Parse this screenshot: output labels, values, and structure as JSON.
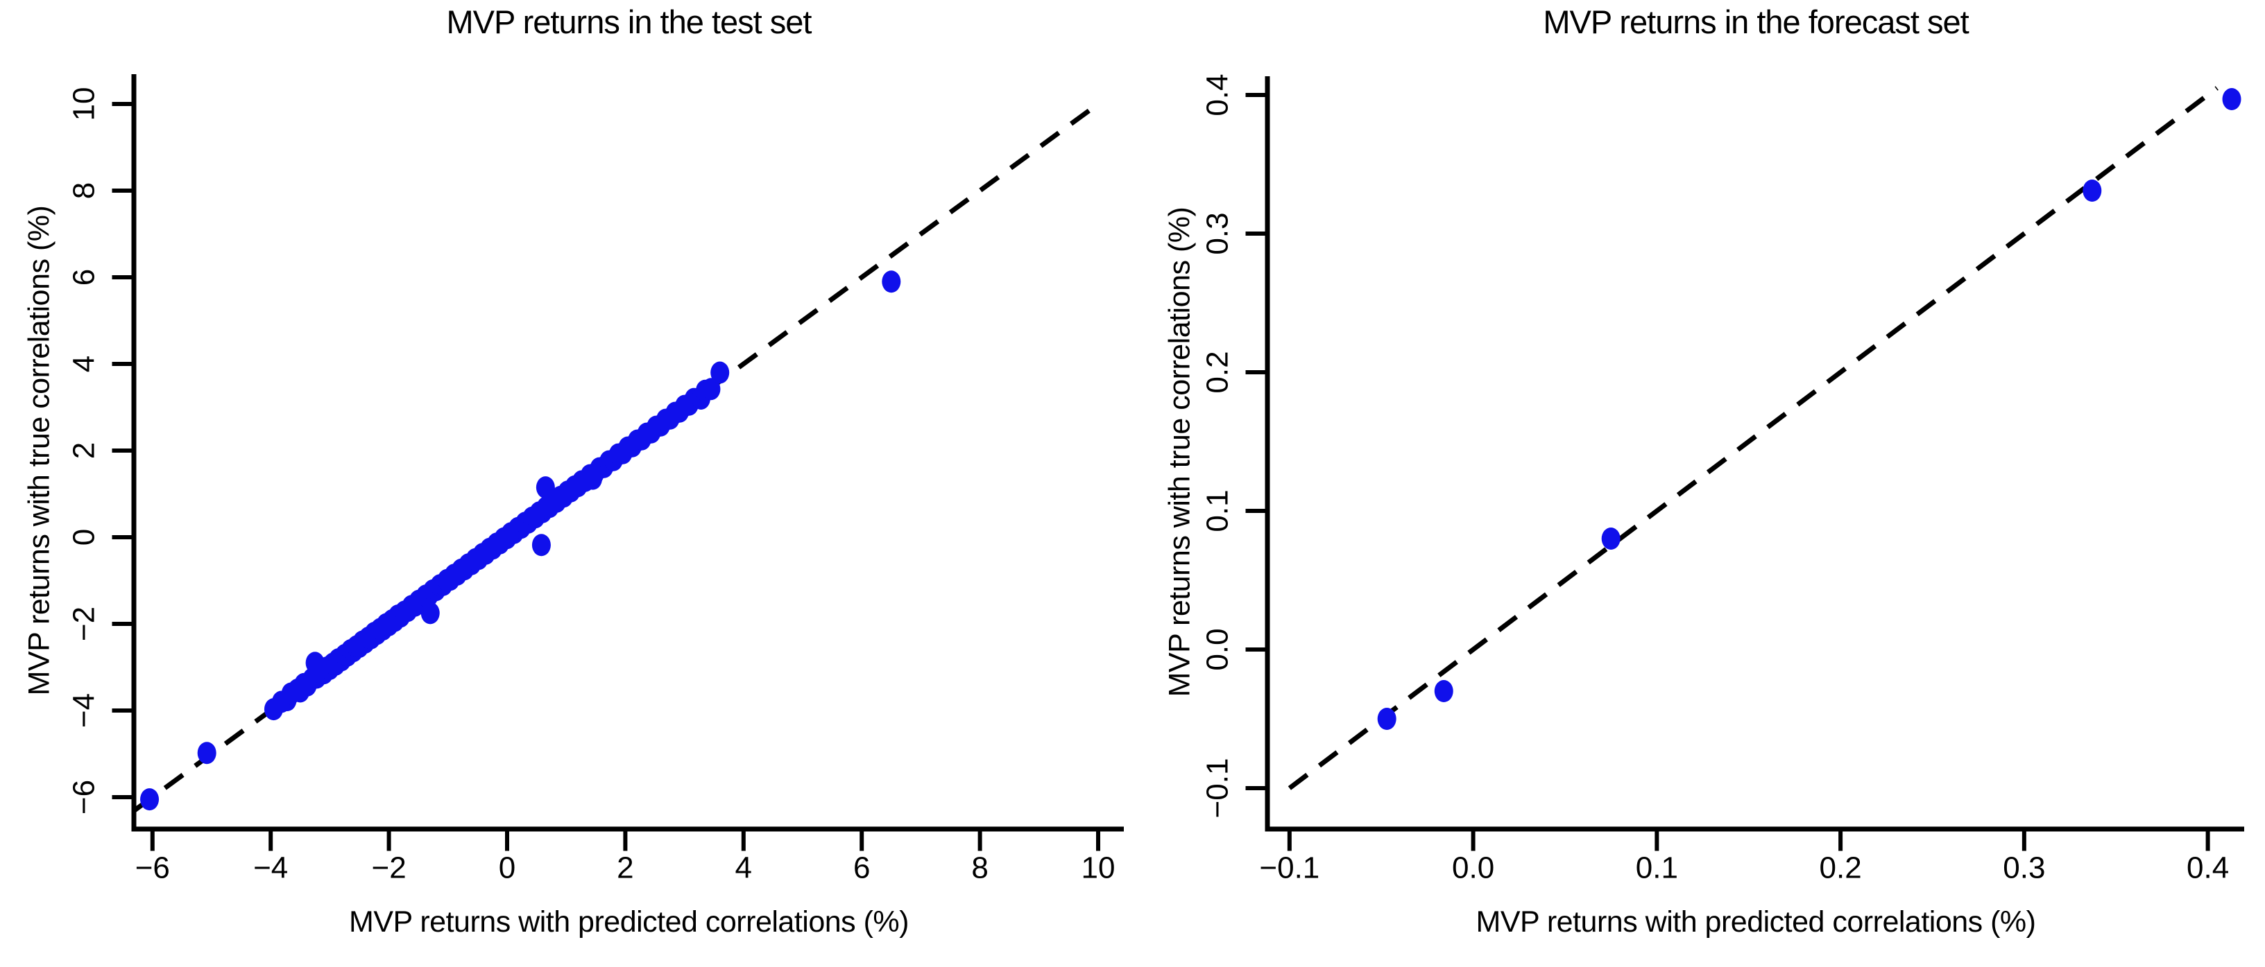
{
  "figure": {
    "background": "#ffffff",
    "axis_color": "#000000",
    "marker_color": "#1010EB"
  },
  "chart_data": [
    {
      "type": "scatter",
      "title": "MVP returns in the test set",
      "xlabel": "MVP returns with predicted correlations (%)",
      "ylabel": "MVP returns with true correlations (%)",
      "xlim": [
        -6.45,
        10.45
      ],
      "ylim": [
        -6.75,
        10.7
      ],
      "grid": false,
      "legend": null,
      "x_ticks": {
        "values": [
          -6,
          -4,
          -2,
          0,
          2,
          4,
          6,
          8,
          10
        ],
        "labels": [
          "−6",
          "−4",
          "−2",
          "0",
          "2",
          "4",
          "6",
          "8",
          "10"
        ]
      },
      "y_ticks": {
        "values": [
          -6,
          -4,
          -2,
          0,
          2,
          4,
          6,
          8,
          10
        ],
        "labels": [
          "−6",
          "−4",
          "−2",
          "0",
          "2",
          "4",
          "6",
          "8",
          "10"
        ]
      },
      "identity_line": {
        "style": "dashed",
        "from": -6.3,
        "to": 9.9
      },
      "points": [
        [
          -6.05,
          -6.05
        ],
        [
          -5.08,
          -4.98
        ],
        [
          -3.95,
          -3.97
        ],
        [
          -3.82,
          -3.8
        ],
        [
          -3.72,
          -3.76
        ],
        [
          -3.66,
          -3.61
        ],
        [
          -3.55,
          -3.52
        ],
        [
          -3.5,
          -3.56
        ],
        [
          -3.44,
          -3.39
        ],
        [
          -3.38,
          -3.42
        ],
        [
          -3.3,
          -3.27
        ],
        [
          -3.25,
          -2.9
        ],
        [
          -3.22,
          -3.24
        ],
        [
          -3.16,
          -3.12
        ],
        [
          -3.1,
          -3.14
        ],
        [
          -3.05,
          -3.01
        ],
        [
          -3.0,
          -3.04
        ],
        [
          -2.95,
          -2.92
        ],
        [
          -2.9,
          -2.94
        ],
        [
          -2.86,
          -2.82
        ],
        [
          -2.8,
          -2.84
        ],
        [
          -2.75,
          -2.72
        ],
        [
          -2.7,
          -2.73
        ],
        [
          -2.65,
          -2.61
        ],
        [
          -2.6,
          -2.63
        ],
        [
          -2.55,
          -2.52
        ],
        [
          -2.5,
          -2.53
        ],
        [
          -2.45,
          -2.41
        ],
        [
          -2.4,
          -2.43
        ],
        [
          -2.35,
          -2.32
        ],
        [
          -2.3,
          -2.33
        ],
        [
          -2.25,
          -2.21
        ],
        [
          -2.2,
          -2.23
        ],
        [
          -2.15,
          -2.12
        ],
        [
          -2.1,
          -2.13
        ],
        [
          -2.05,
          -2.01
        ],
        [
          -2.0,
          -2.03
        ],
        [
          -1.95,
          -1.92
        ],
        [
          -1.9,
          -1.93
        ],
        [
          -1.85,
          -1.81
        ],
        [
          -1.8,
          -1.83
        ],
        [
          -1.74,
          -1.72
        ],
        [
          -1.68,
          -1.7
        ],
        [
          -1.62,
          -1.59
        ],
        [
          -1.56,
          -1.58
        ],
        [
          -1.5,
          -1.47
        ],
        [
          -1.44,
          -1.46
        ],
        [
          -1.38,
          -1.35
        ],
        [
          -1.32,
          -1.34
        ],
        [
          -1.3,
          -1.75
        ],
        [
          -1.26,
          -1.23
        ],
        [
          -1.2,
          -1.22
        ],
        [
          -1.14,
          -1.11
        ],
        [
          -1.08,
          -1.1
        ],
        [
          -1.02,
          -0.99
        ],
        [
          -0.96,
          -0.98
        ],
        [
          -0.9,
          -0.87
        ],
        [
          -0.84,
          -0.86
        ],
        [
          -0.78,
          -0.75
        ],
        [
          -0.72,
          -0.74
        ],
        [
          -0.66,
          -0.63
        ],
        [
          -0.6,
          -0.62
        ],
        [
          -0.54,
          -0.51
        ],
        [
          -0.48,
          -0.5
        ],
        [
          -0.42,
          -0.39
        ],
        [
          -0.36,
          -0.38
        ],
        [
          -0.3,
          -0.27
        ],
        [
          -0.24,
          -0.26
        ],
        [
          -0.18,
          -0.15
        ],
        [
          -0.12,
          -0.14
        ],
        [
          -0.06,
          -0.03
        ],
        [
          0.0,
          -0.02
        ],
        [
          0.06,
          0.09
        ],
        [
          0.12,
          0.1
        ],
        [
          0.18,
          0.21
        ],
        [
          0.24,
          0.22
        ],
        [
          0.3,
          0.33
        ],
        [
          0.36,
          0.34
        ],
        [
          0.42,
          0.45
        ],
        [
          0.48,
          0.46
        ],
        [
          0.54,
          0.57
        ],
        [
          0.58,
          -0.18
        ],
        [
          0.6,
          0.58
        ],
        [
          0.65,
          1.15
        ],
        [
          0.66,
          0.69
        ],
        [
          0.72,
          0.7
        ],
        [
          0.78,
          0.81
        ],
        [
          0.84,
          0.82
        ],
        [
          0.9,
          0.93
        ],
        [
          0.96,
          0.94
        ],
        [
          1.02,
          1.05
        ],
        [
          1.08,
          1.06
        ],
        [
          1.14,
          1.17
        ],
        [
          1.2,
          1.18
        ],
        [
          1.26,
          1.29
        ],
        [
          1.32,
          1.3
        ],
        [
          1.4,
          1.43
        ],
        [
          1.45,
          1.35
        ],
        [
          1.48,
          1.46
        ],
        [
          1.56,
          1.59
        ],
        [
          1.64,
          1.62
        ],
        [
          1.72,
          1.75
        ],
        [
          1.8,
          1.78
        ],
        [
          1.88,
          1.91
        ],
        [
          1.96,
          1.94
        ],
        [
          2.04,
          2.07
        ],
        [
          2.12,
          2.1
        ],
        [
          2.2,
          2.23
        ],
        [
          2.28,
          2.26
        ],
        [
          2.36,
          2.39
        ],
        [
          2.44,
          2.42
        ],
        [
          2.52,
          2.55
        ],
        [
          2.6,
          2.58
        ],
        [
          2.68,
          2.71
        ],
        [
          2.76,
          2.74
        ],
        [
          2.84,
          2.87
        ],
        [
          2.92,
          2.9
        ],
        [
          3.0,
          3.03
        ],
        [
          3.08,
          3.06
        ],
        [
          3.16,
          3.19
        ],
        [
          3.28,
          3.2
        ],
        [
          3.35,
          3.38
        ],
        [
          3.45,
          3.42
        ],
        [
          3.6,
          3.8
        ],
        [
          6.5,
          5.9
        ]
      ]
    },
    {
      "type": "scatter",
      "title": "MVP returns in the forecast set",
      "xlabel": "MVP returns with predicted correlations (%)",
      "ylabel": "MVP returns with true correlations (%)",
      "xlim": [
        -0.112,
        0.42
      ],
      "ylim": [
        -0.13,
        0.415
      ],
      "grid": false,
      "legend": null,
      "x_ticks": {
        "values": [
          -0.1,
          0.0,
          0.1,
          0.2,
          0.3,
          0.4
        ],
        "labels": [
          "−0.1",
          "0.0",
          "0.1",
          "0.2",
          "0.3",
          "0.4"
        ]
      },
      "y_ticks": {
        "values": [
          -0.1,
          0.0,
          0.1,
          0.2,
          0.3,
          0.4
        ],
        "labels": [
          "−0.1",
          "0.0",
          "0.1",
          "0.2",
          "0.3",
          "0.4"
        ]
      },
      "identity_line": {
        "style": "dashed",
        "from": -0.1,
        "to": 0.405
      },
      "points": [
        [
          -0.047,
          -0.05
        ],
        [
          -0.016,
          -0.03
        ],
        [
          0.075,
          0.08
        ],
        [
          0.337,
          0.331
        ],
        [
          0.413,
          0.397
        ]
      ]
    }
  ]
}
